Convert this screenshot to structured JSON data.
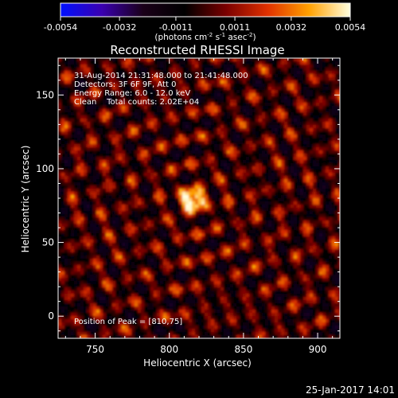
{
  "colorbar": {
    "tick_labels": [
      "-0.0054",
      "-0.0032",
      "-0.0011",
      "0.0011",
      "0.0032",
      "0.0054"
    ],
    "units_label": "(photons cm",
    "units_parts": [
      "(photons cm",
      "-2",
      " s",
      "-1",
      " asec",
      "-2",
      ")"
    ],
    "range": [
      -0.0054,
      0.0054
    ],
    "colors": [
      "#0010ff",
      "#3a00b0",
      "#1a0018",
      "#000000",
      "#7a0000",
      "#e03000",
      "#ffa000",
      "#ffffe0"
    ]
  },
  "title": "Reconstructed RHESSI Image",
  "info_lines": [
    "31-Aug-2014 21:31:48.000 to 21:41:48.000",
    "Detectors: 3F 6F 9F, Att 0",
    "Energy Range: 6.0 - 12.0 keV",
    "Clean    Total counts: 2.02E+04"
  ],
  "peak_label": "Position of Peak = [810,75]",
  "footer_timestamp": "25-Jan-2017 14:01",
  "chart_data": {
    "type": "heatmap",
    "title": "Reconstructed RHESSI Image",
    "xlabel": "Heliocentric X (arcsec)",
    "ylabel": "Heliocentric Y (arcsec)",
    "xlim": [
      725,
      915
    ],
    "ylim": [
      -15,
      175
    ],
    "x_ticks": [
      750,
      800,
      850,
      900
    ],
    "y_ticks": [
      0,
      50,
      100,
      150
    ],
    "peak": {
      "x": 810,
      "y": 75
    },
    "source": {
      "x": 816,
      "y": 79,
      "peak_value": 0.0054
    },
    "background_amplitude": 0.0024
  }
}
